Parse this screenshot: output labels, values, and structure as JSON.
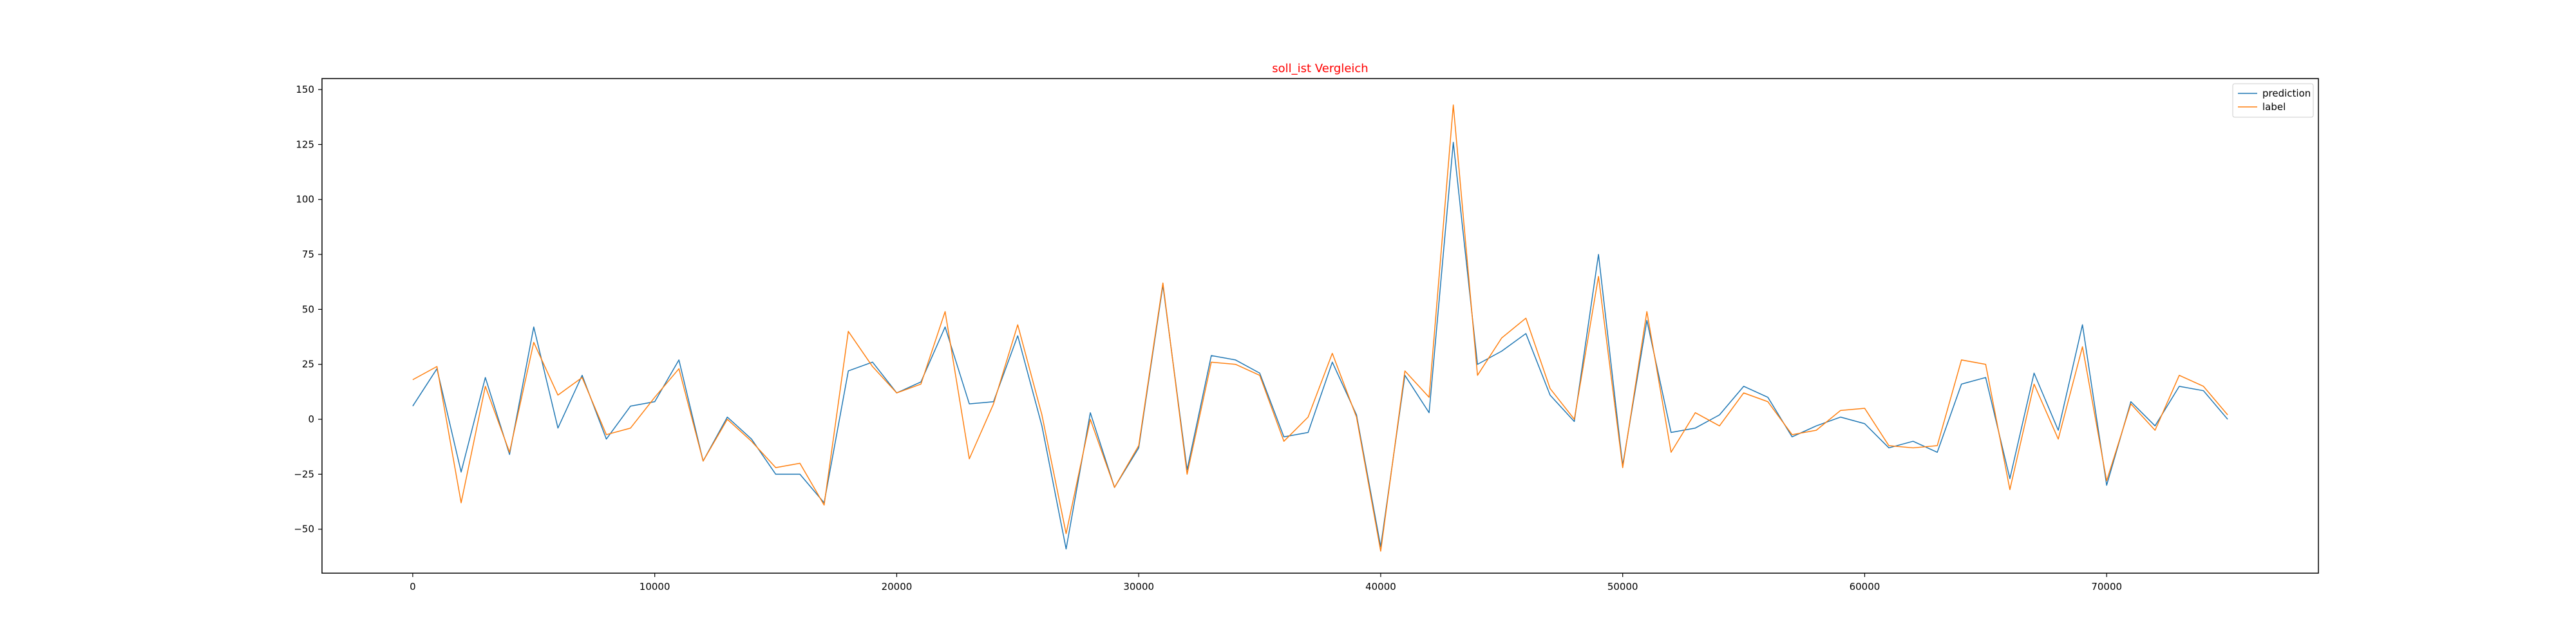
{
  "chart_data": {
    "type": "line",
    "title": "soll_ist Vergleich",
    "title_color": "#ff0000",
    "xlabel": "",
    "ylabel": "",
    "xlim": [
      -3750,
      78750
    ],
    "ylim": [
      -70,
      155
    ],
    "x_ticks": [
      0,
      10000,
      20000,
      30000,
      40000,
      50000,
      60000,
      70000
    ],
    "x_tick_labels": [
      "0",
      "10000",
      "20000",
      "30000",
      "40000",
      "50000",
      "60000",
      "70000"
    ],
    "y_ticks": [
      -50,
      -25,
      0,
      25,
      50,
      75,
      100,
      125,
      150
    ],
    "y_tick_labels": [
      "−50",
      "−25",
      "0",
      "25",
      "50",
      "75",
      "100",
      "125",
      "150"
    ],
    "grid": false,
    "legend_position": "top-right",
    "x": [
      0,
      1000,
      2000,
      3000,
      4000,
      5000,
      6000,
      7000,
      8000,
      9000,
      10000,
      11000,
      12000,
      13000,
      14000,
      15000,
      16000,
      17000,
      18000,
      19000,
      20000,
      21000,
      22000,
      23000,
      24000,
      25000,
      26000,
      27000,
      28000,
      29000,
      30000,
      31000,
      32000,
      33000,
      34000,
      35000,
      36000,
      37000,
      38000,
      39000,
      40000,
      41000,
      42000,
      43000,
      44000,
      45000,
      46000,
      47000,
      48000,
      49000,
      50000,
      51000,
      52000,
      53000,
      54000,
      55000,
      56000,
      57000,
      58000,
      59000,
      60000,
      61000,
      62000,
      63000,
      64000,
      65000,
      66000,
      67000,
      68000,
      69000,
      70000,
      71000,
      72000,
      73000,
      74000,
      75000
    ],
    "series": [
      {
        "name": "prediction",
        "color": "#1f77b4",
        "values": [
          6,
          23,
          -24,
          19,
          -16,
          42,
          -4,
          20,
          -9,
          6,
          8,
          27,
          -19,
          1,
          -9,
          -25,
          -25,
          -38,
          22,
          26,
          12,
          17,
          42,
          7,
          8,
          38,
          -3,
          -59,
          3,
          -31,
          -13,
          61,
          -23,
          29,
          27,
          21,
          -8,
          -6,
          26,
          2,
          -58,
          20,
          3,
          126,
          25,
          31,
          39,
          11,
          -1,
          75,
          -21,
          45,
          -6,
          -4,
          2,
          15,
          10,
          -8,
          -3,
          1,
          -2,
          -13,
          -10,
          -15,
          16,
          19,
          -27,
          21,
          -5,
          43,
          -30,
          8,
          -3,
          15,
          13,
          0
        ]
      },
      {
        "name": "label",
        "color": "#ff7f0e",
        "values": [
          18,
          24,
          -38,
          15,
          -15,
          35,
          11,
          19,
          -7,
          -4,
          10,
          23,
          -19,
          0,
          -10,
          -22,
          -20,
          -39,
          40,
          24,
          12,
          16,
          49,
          -18,
          7,
          43,
          2,
          -52,
          0,
          -31,
          -12,
          62,
          -25,
          26,
          25,
          20,
          -10,
          1,
          30,
          1,
          -60,
          22,
          10,
          143,
          20,
          37,
          46,
          14,
          0,
          65,
          -22,
          49,
          -15,
          3,
          -3,
          12,
          8,
          -7,
          -5,
          4,
          5,
          -12,
          -13,
          -12,
          27,
          25,
          -32,
          16,
          -9,
          33,
          -28,
          7,
          -5,
          20,
          15,
          2
        ]
      }
    ]
  }
}
